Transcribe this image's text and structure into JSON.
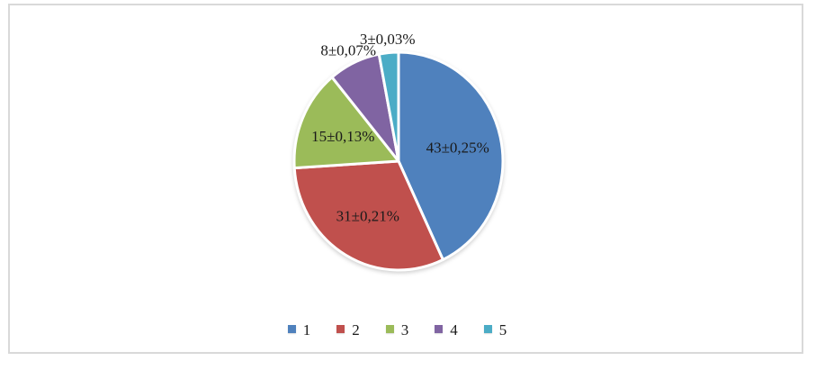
{
  "frame": {
    "border_color": "#d9d9d9",
    "background_color": "#ffffff"
  },
  "chart_data": {
    "type": "pie",
    "title": "",
    "start_angle_deg": 0,
    "direction": "clockwise",
    "slice_gap_color": "#ffffff",
    "label_color": "#1a1a1a",
    "slices": [
      {
        "name": "1",
        "value": 43,
        "label": "43±0,25%",
        "color": "#4f81bd"
      },
      {
        "name": "2",
        "value": 31,
        "label": "31±0,21%",
        "color": "#c0504d"
      },
      {
        "name": "3",
        "value": 15,
        "label": "15±0,13%",
        "color": "#9bbb59"
      },
      {
        "name": "4",
        "value": 8,
        "label": "8±0,07%",
        "color": "#8064a2"
      },
      {
        "name": "5",
        "value": 3,
        "label": "3±0,03%",
        "color": "#4bacc6"
      }
    ],
    "legend": {
      "position": "bottom",
      "entries": [
        "1",
        "2",
        "3",
        "4",
        "5"
      ]
    }
  }
}
